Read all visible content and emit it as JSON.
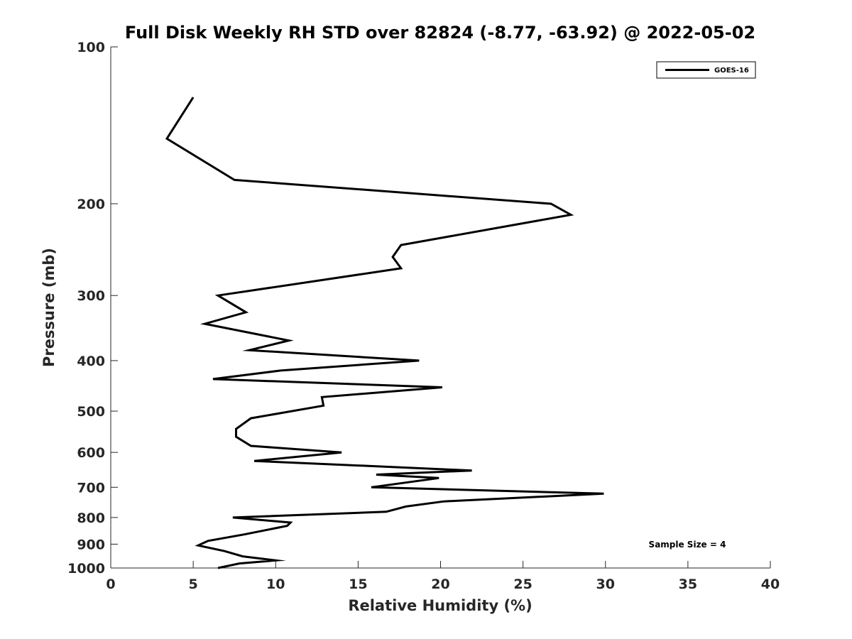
{
  "chart_data": {
    "type": "line",
    "title": "Full Disk Weekly RH STD over 82824 (-8.77, -63.92) @ 2022-05-02",
    "xlabel": "Relative Humidity (%)",
    "ylabel": "Pressure (mb)",
    "xlim": [
      0,
      40
    ],
    "ylim": [
      100,
      1000
    ],
    "yscale": "log",
    "y_reversed": true,
    "x_ticks": [
      0,
      5,
      10,
      15,
      20,
      25,
      30,
      35,
      40
    ],
    "y_ticks": [
      100,
      200,
      300,
      400,
      500,
      600,
      700,
      800,
      900,
      1000
    ],
    "grid": false,
    "legend_position": "top-right",
    "annotation": "Sample Size = 4",
    "series": [
      {
        "name": "GOES-16",
        "color": "#000000",
        "points": [
          [
            5.0,
            125
          ],
          [
            3.4,
            150
          ],
          [
            7.5,
            180
          ],
          [
            26.7,
            200
          ],
          [
            27.9,
            210
          ],
          [
            17.6,
            240
          ],
          [
            17.1,
            253
          ],
          [
            17.6,
            266
          ],
          [
            6.5,
            300
          ],
          [
            8.2,
            323
          ],
          [
            5.7,
            340
          ],
          [
            10.8,
            366
          ],
          [
            8.4,
            382
          ],
          [
            18.7,
            400
          ],
          [
            10.3,
            418
          ],
          [
            6.2,
            434
          ],
          [
            20.1,
            450
          ],
          [
            12.8,
            470
          ],
          [
            12.9,
            488
          ],
          [
            8.5,
            516
          ],
          [
            7.6,
            541
          ],
          [
            7.6,
            560
          ],
          [
            8.5,
            583
          ],
          [
            14.0,
            600
          ],
          [
            8.7,
            623
          ],
          [
            21.9,
            650
          ],
          [
            16.1,
            662
          ],
          [
            19.9,
            672
          ],
          [
            15.8,
            700
          ],
          [
            29.9,
            720
          ],
          [
            20.2,
            745
          ],
          [
            17.9,
            762
          ],
          [
            16.7,
            780
          ],
          [
            7.4,
            800
          ],
          [
            10.9,
            818
          ],
          [
            10.7,
            830
          ],
          [
            8.1,
            862
          ],
          [
            5.9,
            887
          ],
          [
            5.3,
            905
          ],
          [
            6.9,
            928
          ],
          [
            8.0,
            950
          ],
          [
            10.0,
            967
          ],
          [
            7.8,
            980
          ],
          [
            6.5,
            1000
          ]
        ]
      }
    ]
  }
}
